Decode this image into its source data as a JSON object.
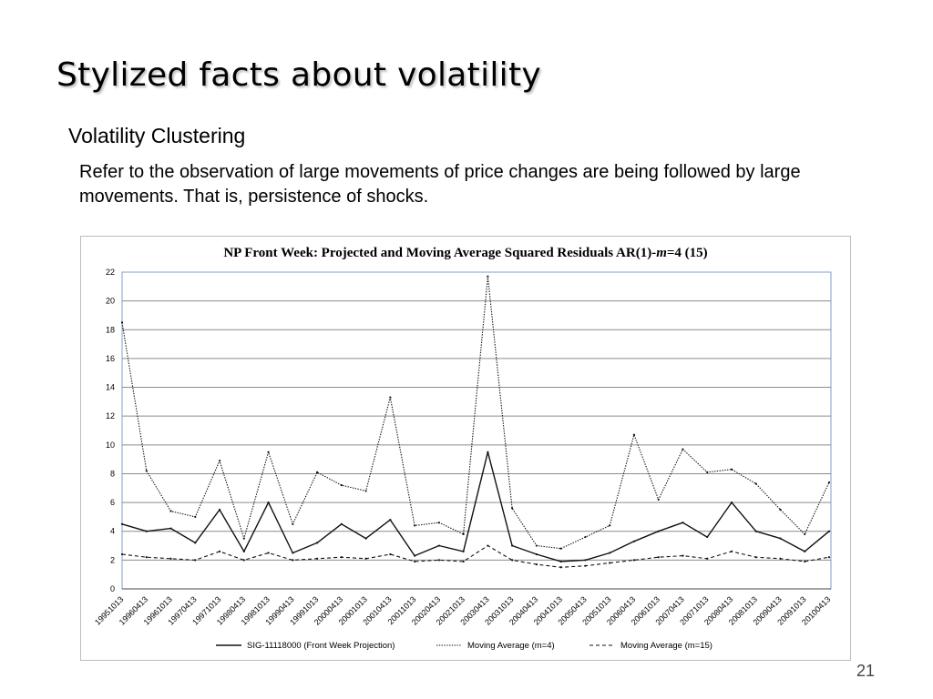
{
  "slide": {
    "title": "Stylized facts about volatility",
    "subtitle": "Volatility Clustering",
    "body": "Refer to the observation of large movements of price changes are being followed by large movements. That is, persistence of shocks.",
    "page_number": "21"
  },
  "chart_data": {
    "type": "line",
    "title_parts": [
      "NP Front Week: Projected and Moving Average Squared Residuals AR(1)-",
      "m",
      "=4 (15)"
    ],
    "xlabel": "",
    "ylabel": "",
    "ylim": [
      0,
      22
    ],
    "yticks": [
      0,
      2,
      4,
      6,
      8,
      10,
      12,
      14,
      16,
      18,
      20,
      22
    ],
    "grid": true,
    "legend_position": "bottom",
    "x_tick_labels": [
      "19951013",
      "19960413",
      "19961013",
      "19970413",
      "19971013",
      "19980413",
      "19981013",
      "19990413",
      "19991013",
      "20000413",
      "20001013",
      "20010413",
      "20011013",
      "20020413",
      "20021013",
      "20030413",
      "20031013",
      "20040413",
      "20041013",
      "20050413",
      "20051013",
      "20060413",
      "20061013",
      "20070413",
      "20071013",
      "20080413",
      "20081013",
      "20090413",
      "20091013",
      "20100413"
    ],
    "series": [
      {
        "name": "SIG-11118000 (Front Week Projection)",
        "style": "solid",
        "x": [
          "19951013",
          "19960413",
          "19961013",
          "19970413",
          "19971013",
          "19980413",
          "19981013",
          "19990413",
          "19991013",
          "20000413",
          "20001013",
          "20010413",
          "20011013",
          "20020413",
          "20021013",
          "20030413",
          "20031013",
          "20040413",
          "20041013",
          "20050413",
          "20051013",
          "20060413",
          "20061013",
          "20070413",
          "20071013",
          "20080413",
          "20081013",
          "20090413",
          "20091013",
          "20100413"
        ],
        "values": [
          4.5,
          4.0,
          4.2,
          3.2,
          5.5,
          2.6,
          6.0,
          2.5,
          3.2,
          4.5,
          3.5,
          4.8,
          2.3,
          3.0,
          2.6,
          9.5,
          3.0,
          2.4,
          1.9,
          2.0,
          2.5,
          3.3,
          4.0,
          4.6,
          3.6,
          6.0,
          4.0,
          3.5,
          2.6,
          4.0
        ]
      },
      {
        "name": "Moving Average (m=4)",
        "style": "dotted",
        "x": [
          "19951013",
          "19960413",
          "19961013",
          "19970413",
          "19971013",
          "19980413",
          "19981013",
          "19990413",
          "19991013",
          "20000413",
          "20001013",
          "20010413",
          "20011013",
          "20020413",
          "20021013",
          "20030413",
          "20031013",
          "20040413",
          "20041013",
          "20050413",
          "20051013",
          "20060413",
          "20061013",
          "20070413",
          "20071013",
          "20080413",
          "20081013",
          "20090413",
          "20091013",
          "20100413"
        ],
        "values": [
          18.5,
          8.2,
          5.4,
          5.0,
          8.9,
          3.5,
          9.5,
          4.5,
          8.1,
          7.2,
          6.8,
          13.3,
          4.4,
          4.6,
          3.8,
          21.7,
          5.6,
          3.0,
          2.8,
          3.6,
          4.4,
          10.7,
          6.2,
          9.7,
          8.1,
          8.3,
          7.3,
          5.5,
          3.8,
          7.4
        ]
      },
      {
        "name": "Moving Average (m=15)",
        "style": "dashed",
        "x": [
          "19951013",
          "19960413",
          "19961013",
          "19970413",
          "19971013",
          "19980413",
          "19981013",
          "19990413",
          "19991013",
          "20000413",
          "20001013",
          "20010413",
          "20011013",
          "20020413",
          "20021013",
          "20030413",
          "20031013",
          "20040413",
          "20041013",
          "20050413",
          "20051013",
          "20060413",
          "20061013",
          "20070413",
          "20071013",
          "20080413",
          "20081013",
          "20090413",
          "20091013",
          "20100413"
        ],
        "values": [
          2.4,
          2.2,
          2.1,
          2.0,
          2.6,
          2.0,
          2.5,
          2.0,
          2.1,
          2.2,
          2.1,
          2.4,
          1.9,
          2.0,
          1.9,
          3.0,
          2.0,
          1.7,
          1.5,
          1.6,
          1.8,
          2.0,
          2.2,
          2.3,
          2.1,
          2.6,
          2.2,
          2.1,
          1.9,
          2.2
        ]
      }
    ]
  }
}
